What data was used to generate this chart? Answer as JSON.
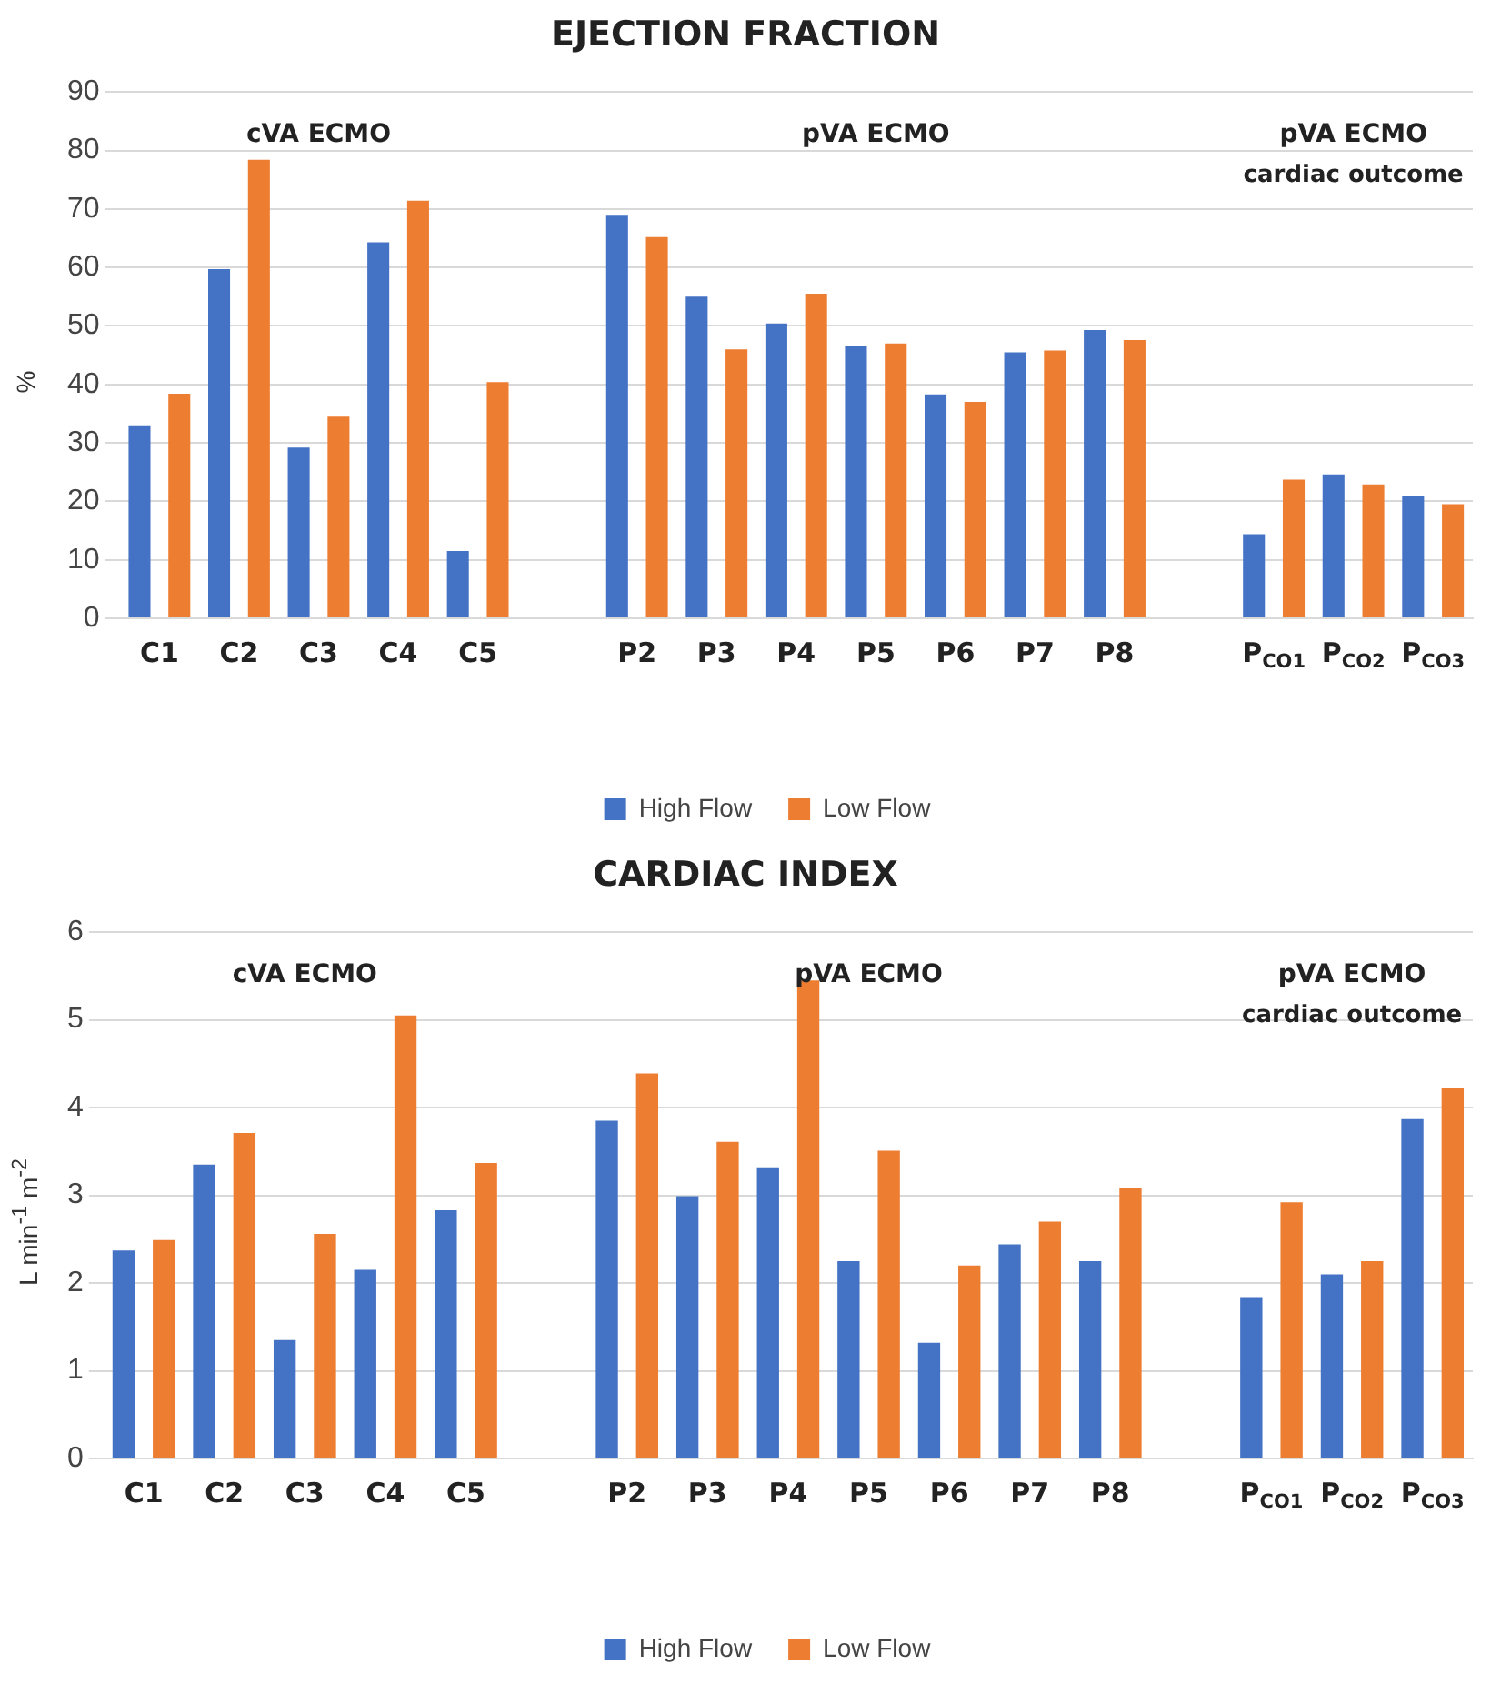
{
  "chart_data": [
    {
      "type": "bar",
      "title": "EJECTION FRACTION",
      "ylabel": "%",
      "categories": [
        "C1",
        "C2",
        "C3",
        "C4",
        "C5",
        null,
        "P2",
        "P3",
        "P4",
        "P5",
        "P6",
        "P7",
        "P8",
        null,
        "P$_{CO1}$",
        "P$_{CO2}$",
        "P$_{CO3}$"
      ],
      "series": [
        {
          "name": "High Flow",
          "color": "#4472c4",
          "values": [
            33,
            59.7,
            29.2,
            64.3,
            11.5,
            null,
            69,
            55,
            50.4,
            46.6,
            38.3,
            45.5,
            49.3,
            null,
            14.4,
            24.6,
            20.9
          ]
        },
        {
          "name": "Low Flow",
          "color": "#ed7d31",
          "values": [
            38.4,
            78.4,
            34.5,
            71.4,
            40.4,
            null,
            65.2,
            46,
            55.5,
            47,
            37,
            45.8,
            47.6,
            null,
            23.7,
            22.9,
            19.5
          ]
        }
      ],
      "ylim": [
        0,
        90
      ],
      "yticks": [
        0,
        10,
        20,
        30,
        40,
        50,
        60,
        70,
        80,
        90
      ],
      "grid": "y",
      "legend": "bottom",
      "annotations": [
        "cVA ECMO",
        "pVA ECMO",
        "pVA ECMO",
        "cardiac outcome"
      ]
    },
    {
      "type": "bar",
      "title": "CARDIAC INDEX",
      "ylabel": "L min$^{-1}$ m$^{-2}$",
      "categories": [
        "C1",
        "C2",
        "C3",
        "C4",
        "C5",
        null,
        "P2",
        "P3",
        "P4",
        "P5",
        "P6",
        "P7",
        "P8",
        null,
        "P$_{CO1}$",
        "P$_{CO2}$",
        "P$_{CO3}$"
      ],
      "series": [
        {
          "name": "High Flow",
          "color": "#4472c4",
          "values": [
            2.37,
            3.35,
            1.35,
            2.15,
            2.83,
            null,
            3.85,
            2.99,
            3.32,
            2.25,
            1.32,
            2.44,
            2.25,
            null,
            1.84,
            2.1,
            3.87
          ]
        },
        {
          "name": "Low Flow",
          "color": "#ed7d31",
          "values": [
            2.49,
            3.71,
            2.56,
            5.05,
            3.37,
            null,
            4.39,
            3.61,
            5.45,
            3.51,
            2.2,
            2.7,
            3.08,
            null,
            2.92,
            2.25,
            4.22
          ]
        }
      ],
      "ylim": [
        0,
        6
      ],
      "yticks": [
        0,
        1,
        2,
        3,
        4,
        5,
        6
      ],
      "grid": "y",
      "legend": "bottom",
      "annotations": [
        "cVA ECMO",
        "pVA ECMO",
        "pVA ECMO",
        "cardiac outcome"
      ]
    }
  ]
}
